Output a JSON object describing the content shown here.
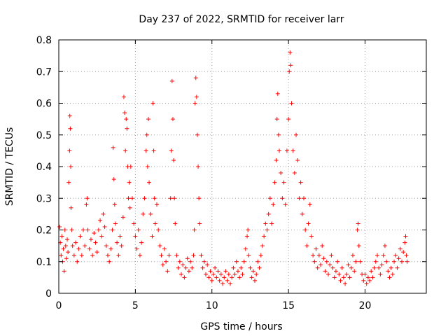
{
  "chart_data": {
    "type": "scatter",
    "title": "Day 237 of 2022, SRMTID for receiver larr",
    "xlabel": "GPS time / hours",
    "ylabel": "SRMTID / TECUs",
    "xlim": [
      0,
      24
    ],
    "ylim": [
      0,
      0.8
    ],
    "grid": true,
    "marker": "+",
    "marker_color": "#ff0000",
    "x_ticks": [
      0,
      5,
      10,
      15,
      20
    ],
    "x_tick_labels": [
      "0",
      "5",
      "10",
      "15",
      "20"
    ],
    "y_ticks": [
      0,
      0.1,
      0.2,
      0.3,
      0.4,
      0.5,
      0.6,
      0.7,
      0.8
    ],
    "y_tick_labels": [
      "0",
      "0.1",
      "0.2",
      "0.3",
      "0.4",
      "0.5",
      "0.6",
      "0.7",
      "0.8"
    ],
    "series": [
      {
        "name": "SRMTID",
        "points": [
          [
            0.05,
            0.21
          ],
          [
            0.1,
            0.16
          ],
          [
            0.15,
            0.12
          ],
          [
            0.2,
            0.18
          ],
          [
            0.25,
            0.1
          ],
          [
            0.3,
            0.14
          ],
          [
            0.35,
            0.07
          ],
          [
            0.4,
            0.2
          ],
          [
            0.45,
            0.15
          ],
          [
            0.5,
            0.11
          ],
          [
            0.55,
            0.17
          ],
          [
            0.6,
            0.13
          ],
          [
            0.65,
            0.35
          ],
          [
            0.7,
            0.45
          ],
          [
            0.72,
            0.56
          ],
          [
            0.75,
            0.52
          ],
          [
            0.78,
            0.4
          ],
          [
            0.8,
            0.27
          ],
          [
            0.85,
            0.2
          ],
          [
            0.9,
            0.15
          ],
          [
            1.0,
            0.12
          ],
          [
            1.1,
            0.16
          ],
          [
            1.2,
            0.1
          ],
          [
            1.3,
            0.14
          ],
          [
            1.4,
            0.18
          ],
          [
            1.5,
            0.12
          ],
          [
            1.6,
            0.2
          ],
          [
            1.7,
            0.15
          ],
          [
            1.8,
            0.28
          ],
          [
            1.85,
            0.3
          ],
          [
            1.9,
            0.2
          ],
          [
            2.0,
            0.14
          ],
          [
            2.1,
            0.17
          ],
          [
            2.2,
            0.12
          ],
          [
            2.3,
            0.19
          ],
          [
            2.4,
            0.16
          ],
          [
            2.5,
            0.13
          ],
          [
            2.6,
            0.2
          ],
          [
            2.7,
            0.23
          ],
          [
            2.8,
            0.18
          ],
          [
            2.9,
            0.25
          ],
          [
            3.0,
            0.21
          ],
          [
            3.1,
            0.15
          ],
          [
            3.2,
            0.12
          ],
          [
            3.3,
            0.1
          ],
          [
            3.4,
            0.14
          ],
          [
            3.5,
            0.2
          ],
          [
            3.55,
            0.46
          ],
          [
            3.6,
            0.36
          ],
          [
            3.65,
            0.28
          ],
          [
            3.7,
            0.22
          ],
          [
            3.8,
            0.16
          ],
          [
            3.9,
            0.12
          ],
          [
            4.0,
            0.18
          ],
          [
            4.1,
            0.15
          ],
          [
            4.2,
            0.24
          ],
          [
            4.25,
            0.62
          ],
          [
            4.3,
            0.57
          ],
          [
            4.35,
            0.45
          ],
          [
            4.4,
            0.55
          ],
          [
            4.45,
            0.52
          ],
          [
            4.5,
            0.4
          ],
          [
            4.55,
            0.3
          ],
          [
            4.6,
            0.35
          ],
          [
            4.65,
            0.27
          ],
          [
            4.7,
            0.4
          ],
          [
            4.8,
            0.3
          ],
          [
            4.9,
            0.22
          ],
          [
            5.0,
            0.18
          ],
          [
            5.1,
            0.14
          ],
          [
            5.2,
            0.2
          ],
          [
            5.3,
            0.12
          ],
          [
            5.4,
            0.16
          ],
          [
            5.5,
            0.25
          ],
          [
            5.6,
            0.3
          ],
          [
            5.7,
            0.45
          ],
          [
            5.75,
            0.5
          ],
          [
            5.8,
            0.4
          ],
          [
            5.85,
            0.55
          ],
          [
            5.9,
            0.35
          ],
          [
            6.0,
            0.25
          ],
          [
            6.1,
            0.18
          ],
          [
            6.15,
            0.6
          ],
          [
            6.2,
            0.45
          ],
          [
            6.25,
            0.3
          ],
          [
            6.3,
            0.22
          ],
          [
            6.4,
            0.28
          ],
          [
            6.5,
            0.2
          ],
          [
            6.6,
            0.15
          ],
          [
            6.7,
            0.12
          ],
          [
            6.8,
            0.09
          ],
          [
            6.9,
            0.14
          ],
          [
            7.0,
            0.1
          ],
          [
            7.1,
            0.07
          ],
          [
            7.2,
            0.12
          ],
          [
            7.3,
            0.3
          ],
          [
            7.35,
            0.45
          ],
          [
            7.4,
            0.67
          ],
          [
            7.45,
            0.55
          ],
          [
            7.5,
            0.42
          ],
          [
            7.55,
            0.3
          ],
          [
            7.6,
            0.22
          ],
          [
            7.7,
            0.12
          ],
          [
            7.8,
            0.08
          ],
          [
            7.9,
            0.1
          ],
          [
            8.0,
            0.06
          ],
          [
            8.1,
            0.09
          ],
          [
            8.2,
            0.05
          ],
          [
            8.3,
            0.08
          ],
          [
            8.4,
            0.11
          ],
          [
            8.5,
            0.07
          ],
          [
            8.6,
            0.1
          ],
          [
            8.7,
            0.08
          ],
          [
            8.8,
            0.12
          ],
          [
            8.85,
            0.2
          ],
          [
            8.9,
            0.6
          ],
          [
            8.95,
            0.68
          ],
          [
            9.0,
            0.62
          ],
          [
            9.05,
            0.5
          ],
          [
            9.1,
            0.4
          ],
          [
            9.15,
            0.3
          ],
          [
            9.2,
            0.22
          ],
          [
            9.3,
            0.12
          ],
          [
            9.4,
            0.08
          ],
          [
            9.5,
            0.1
          ],
          [
            9.6,
            0.06
          ],
          [
            9.7,
            0.09
          ],
          [
            9.8,
            0.05
          ],
          [
            9.9,
            0.07
          ],
          [
            10.0,
            0.04
          ],
          [
            10.1,
            0.06
          ],
          [
            10.2,
            0.08
          ],
          [
            10.3,
            0.05
          ],
          [
            10.4,
            0.07
          ],
          [
            10.5,
            0.04
          ],
          [
            10.6,
            0.06
          ],
          [
            10.7,
            0.03
          ],
          [
            10.8,
            0.05
          ],
          [
            10.9,
            0.07
          ],
          [
            11.0,
            0.04
          ],
          [
            11.1,
            0.06
          ],
          [
            11.2,
            0.03
          ],
          [
            11.3,
            0.05
          ],
          [
            11.4,
            0.08
          ],
          [
            11.5,
            0.06
          ],
          [
            11.6,
            0.1
          ],
          [
            11.7,
            0.07
          ],
          [
            11.8,
            0.05
          ],
          [
            11.9,
            0.08
          ],
          [
            12.0,
            0.06
          ],
          [
            12.1,
            0.1
          ],
          [
            12.2,
            0.14
          ],
          [
            12.3,
            0.18
          ],
          [
            12.35,
            0.2
          ],
          [
            12.4,
            0.12
          ],
          [
            12.5,
            0.08
          ],
          [
            12.6,
            0.05
          ],
          [
            12.7,
            0.07
          ],
          [
            12.8,
            0.04
          ],
          [
            12.9,
            0.06
          ],
          [
            13.0,
            0.1
          ],
          [
            13.1,
            0.08
          ],
          [
            13.2,
            0.12
          ],
          [
            13.3,
            0.15
          ],
          [
            13.4,
            0.18
          ],
          [
            13.5,
            0.22
          ],
          [
            13.6,
            0.2
          ],
          [
            13.7,
            0.25
          ],
          [
            13.8,
            0.3
          ],
          [
            13.9,
            0.22
          ],
          [
            14.0,
            0.28
          ],
          [
            14.1,
            0.35
          ],
          [
            14.2,
            0.42
          ],
          [
            14.25,
            0.55
          ],
          [
            14.3,
            0.63
          ],
          [
            14.35,
            0.5
          ],
          [
            14.4,
            0.45
          ],
          [
            14.5,
            0.38
          ],
          [
            14.6,
            0.3
          ],
          [
            14.7,
            0.35
          ],
          [
            14.8,
            0.28
          ],
          [
            14.9,
            0.45
          ],
          [
            15.0,
            0.55
          ],
          [
            15.05,
            0.7
          ],
          [
            15.1,
            0.76
          ],
          [
            15.15,
            0.72
          ],
          [
            15.2,
            0.6
          ],
          [
            15.3,
            0.45
          ],
          [
            15.4,
            0.38
          ],
          [
            15.5,
            0.5
          ],
          [
            15.6,
            0.42
          ],
          [
            15.7,
            0.3
          ],
          [
            15.8,
            0.35
          ],
          [
            15.9,
            0.25
          ],
          [
            16.0,
            0.3
          ],
          [
            16.1,
            0.2
          ],
          [
            16.2,
            0.15
          ],
          [
            16.3,
            0.22
          ],
          [
            16.4,
            0.28
          ],
          [
            16.5,
            0.18
          ],
          [
            16.6,
            0.12
          ],
          [
            16.7,
            0.1
          ],
          [
            16.8,
            0.14
          ],
          [
            16.9,
            0.08
          ],
          [
            17.0,
            0.12
          ],
          [
            17.1,
            0.09
          ],
          [
            17.2,
            0.15
          ],
          [
            17.3,
            0.11
          ],
          [
            17.4,
            0.07
          ],
          [
            17.5,
            0.1
          ],
          [
            17.6,
            0.06
          ],
          [
            17.7,
            0.09
          ],
          [
            17.8,
            0.12
          ],
          [
            17.9,
            0.08
          ],
          [
            18.0,
            0.05
          ],
          [
            18.1,
            0.07
          ],
          [
            18.2,
            0.1
          ],
          [
            18.3,
            0.06
          ],
          [
            18.4,
            0.04
          ],
          [
            18.5,
            0.08
          ],
          [
            18.6,
            0.05
          ],
          [
            18.7,
            0.03
          ],
          [
            18.8,
            0.06
          ],
          [
            18.9,
            0.09
          ],
          [
            19.0,
            0.05
          ],
          [
            19.1,
            0.08
          ],
          [
            19.2,
            0.12
          ],
          [
            19.3,
            0.07
          ],
          [
            19.4,
            0.1
          ],
          [
            19.5,
            0.2
          ],
          [
            19.55,
            0.22
          ],
          [
            19.6,
            0.15
          ],
          [
            19.7,
            0.1
          ],
          [
            19.8,
            0.06
          ],
          [
            19.9,
            0.04
          ],
          [
            20.0,
            0.06
          ],
          [
            20.1,
            0.03
          ],
          [
            20.2,
            0.05
          ],
          [
            20.3,
            0.04
          ],
          [
            20.4,
            0.07
          ],
          [
            20.5,
            0.05
          ],
          [
            20.6,
            0.08
          ],
          [
            20.7,
            0.1
          ],
          [
            20.8,
            0.12
          ],
          [
            20.9,
            0.08
          ],
          [
            21.0,
            0.06
          ],
          [
            21.1,
            0.09
          ],
          [
            21.2,
            0.12
          ],
          [
            21.3,
            0.15
          ],
          [
            21.4,
            0.1
          ],
          [
            21.5,
            0.07
          ],
          [
            21.6,
            0.05
          ],
          [
            21.7,
            0.08
          ],
          [
            21.8,
            0.06
          ],
          [
            21.9,
            0.1
          ],
          [
            22.0,
            0.12
          ],
          [
            22.1,
            0.08
          ],
          [
            22.2,
            0.11
          ],
          [
            22.3,
            0.14
          ],
          [
            22.4,
            0.1
          ],
          [
            22.5,
            0.13
          ],
          [
            22.6,
            0.16
          ],
          [
            22.65,
            0.18
          ],
          [
            22.7,
            0.12
          ],
          [
            22.75,
            0.1
          ]
        ]
      }
    ]
  }
}
